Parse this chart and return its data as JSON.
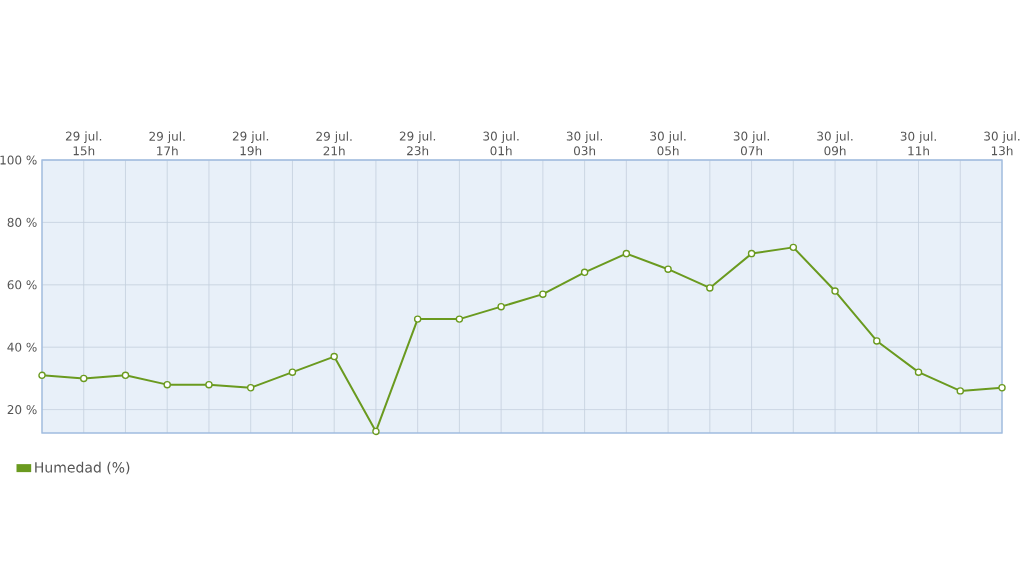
{
  "chart_data": {
    "type": "line",
    "categories": [
      null,
      "29 jul. 15h",
      null,
      "29 jul. 17h",
      null,
      "29 jul. 19h",
      null,
      "29 jul. 21h",
      null,
      "29 jul. 23h",
      null,
      "30 jul. 01h",
      null,
      "30 jul. 03h",
      null,
      "30 jul. 05h",
      null,
      "30 jul. 07h",
      null,
      "30 jul. 09h",
      null,
      "30 jul. 11h",
      null,
      "30 jul. 13h"
    ],
    "series": [
      {
        "name": "Humedad (%)",
        "color": "#6a9a1f",
        "values": [
          31,
          30,
          31,
          28,
          28,
          27,
          32,
          37,
          13,
          49,
          49,
          53,
          57,
          64,
          70,
          65,
          59,
          70,
          72,
          58,
          42,
          32,
          26,
          27
        ]
      }
    ],
    "ylim": [
      12.5,
      100
    ],
    "yticks": [
      {
        "value": 20,
        "label": "20 %"
      },
      {
        "value": 40,
        "label": "40 %"
      },
      {
        "value": 60,
        "label": "60 %"
      },
      {
        "value": 80,
        "label": "80 %"
      },
      {
        "value": 100,
        "label": "100 %"
      }
    ],
    "grid": true,
    "legend": "bottom left",
    "marker": "circle",
    "line_style": "solid"
  }
}
